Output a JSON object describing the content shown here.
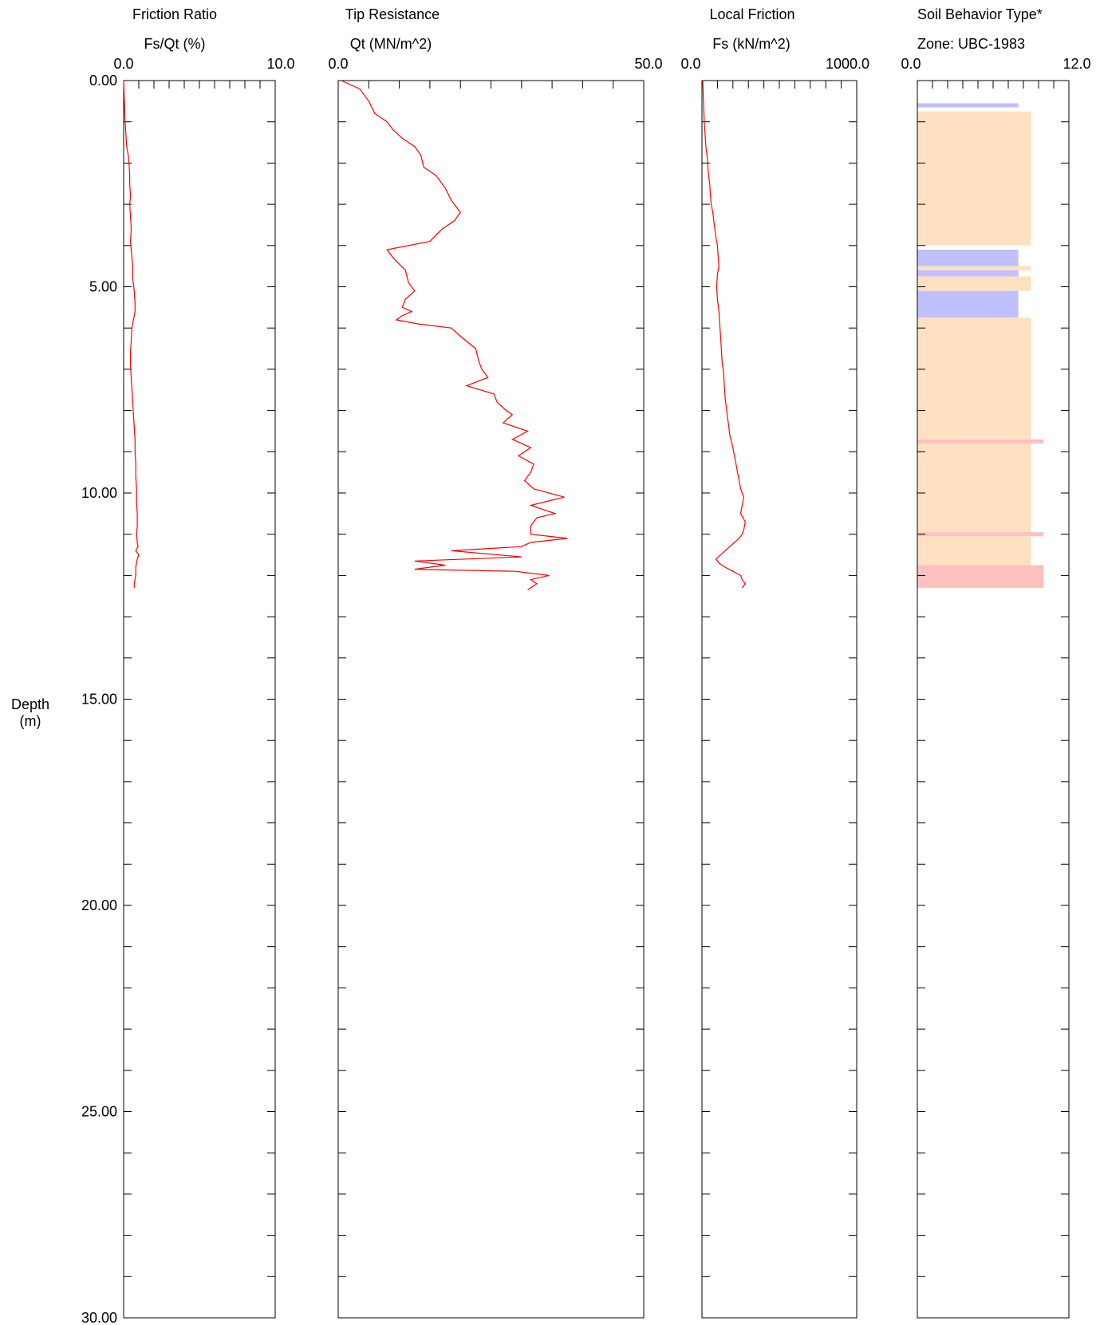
{
  "depth_axis": {
    "label_line1": "Depth",
    "label_line2": "(m)",
    "range": [
      0,
      30
    ],
    "major_ticks": [
      0,
      5,
      10,
      15,
      20,
      25,
      30
    ],
    "major_tick_labels": [
      "0.00",
      "5.00",
      "10.00",
      "15.00",
      "20.00",
      "25.00",
      "30.00"
    ],
    "minor_step": 1
  },
  "chart_data": [
    {
      "type": "line",
      "title": "Friction Ratio",
      "xlabel": "Fs/Qt (%)",
      "xlim": [
        0,
        10
      ],
      "x_tick_labels": [
        "0.0",
        "10.0"
      ],
      "ylabel": "Depth (m)",
      "series_color": "#ff0000",
      "x": [
        0.0,
        0.05,
        0.1,
        0.15,
        0.2,
        0.3,
        0.35,
        0.4,
        0.4,
        0.45,
        0.4,
        0.45,
        0.5,
        0.45,
        0.5,
        0.55,
        0.6,
        0.6,
        0.7,
        0.75,
        0.75,
        0.65,
        0.55,
        0.5,
        0.45,
        0.45,
        0.5,
        0.55,
        0.6,
        0.65,
        0.7,
        0.75,
        0.75,
        0.8,
        0.8,
        0.85,
        0.85,
        0.9,
        0.9,
        0.85,
        0.9,
        0.95,
        0.8,
        1.0,
        0.9,
        0.8,
        0.8,
        0.7,
        0.7
      ],
      "y": [
        0.0,
        0.5,
        1.0,
        1.3,
        1.6,
        1.8,
        2.0,
        2.3,
        2.5,
        2.8,
        3.0,
        3.3,
        3.6,
        3.9,
        4.1,
        4.3,
        4.5,
        4.8,
        5.1,
        5.4,
        5.6,
        5.8,
        6.0,
        6.3,
        6.6,
        6.9,
        7.2,
        7.5,
        7.8,
        8.1,
        8.4,
        8.7,
        9.0,
        9.3,
        9.6,
        9.9,
        10.2,
        10.5,
        10.8,
        11.0,
        11.2,
        11.3,
        11.4,
        11.5,
        11.6,
        11.8,
        12.0,
        12.2,
        12.3
      ]
    },
    {
      "type": "line",
      "title": "Tip Resistance",
      "xlabel": "Qt (MN/m^2)",
      "xlim": [
        0,
        50
      ],
      "x_tick_labels": [
        "0.0",
        "50.0"
      ],
      "ylabel": "Depth (m)",
      "series_color": "#ff0000",
      "x": [
        0.5,
        3.5,
        5.0,
        6.0,
        8.0,
        9.0,
        10.5,
        12.5,
        13.5,
        14.0,
        16.0,
        17.5,
        18.5,
        20.0,
        19.0,
        17.0,
        15.0,
        8.0,
        9.0,
        11.0,
        11.5,
        12.5,
        11.0,
        10.5,
        12.0,
        10.5,
        9.5,
        13.0,
        18.5,
        20.0,
        22.5,
        23.0,
        23.5,
        24.5,
        21.0,
        25.5,
        26.0,
        27.5,
        28.5,
        27.0,
        31.0,
        28.5,
        31.5,
        29.5,
        32.0,
        31.5,
        30.5,
        32.0,
        37.0,
        31.5,
        35.5,
        32.5,
        31.5,
        31.5,
        37.5,
        31.5,
        30.0,
        18.5,
        30.0,
        12.5,
        17.5,
        12.5,
        29.0,
        34.5,
        31.5,
        32.5,
        31.0
      ],
      "y": [
        0.0,
        0.2,
        0.5,
        0.8,
        1.0,
        1.2,
        1.4,
        1.6,
        1.8,
        2.1,
        2.3,
        2.6,
        2.9,
        3.2,
        3.4,
        3.6,
        3.9,
        4.1,
        4.3,
        4.6,
        4.9,
        5.1,
        5.3,
        5.5,
        5.6,
        5.7,
        5.8,
        5.9,
        6.0,
        6.2,
        6.5,
        6.8,
        7.0,
        7.2,
        7.4,
        7.6,
        7.8,
        8.0,
        8.1,
        8.3,
        8.5,
        8.7,
        8.9,
        9.1,
        9.3,
        9.5,
        9.7,
        9.9,
        10.1,
        10.3,
        10.5,
        10.6,
        10.8,
        11.0,
        11.1,
        11.2,
        11.3,
        11.4,
        11.55,
        11.65,
        11.75,
        11.85,
        11.9,
        12.0,
        12.1,
        12.2,
        12.35
      ]
    },
    {
      "type": "line",
      "title": "Local Friction",
      "xlabel": "Fs (kN/m^2)",
      "xlim": [
        0,
        1000
      ],
      "x_tick_labels": [
        "0.0",
        "1000.0"
      ],
      "ylabel": "Depth (m)",
      "series_color": "#ff0000",
      "x": [
        5,
        10,
        15,
        20,
        25,
        35,
        40,
        50,
        55,
        60,
        70,
        80,
        90,
        100,
        105,
        110,
        100,
        95,
        100,
        110,
        115,
        120,
        125,
        130,
        140,
        145,
        150,
        160,
        170,
        180,
        200,
        210,
        220,
        230,
        240,
        250,
        270,
        260,
        250,
        280,
        270,
        260,
        240,
        210,
        180,
        150,
        120,
        90,
        110,
        150,
        200,
        250,
        260,
        280,
        260
      ],
      "y": [
        0.0,
        0.5,
        1.0,
        1.3,
        1.6,
        1.9,
        2.2,
        2.5,
        2.8,
        3.0,
        3.2,
        3.5,
        3.8,
        4.0,
        4.3,
        4.5,
        4.7,
        5.0,
        5.3,
        5.6,
        5.9,
        6.2,
        6.5,
        6.8,
        7.1,
        7.4,
        7.7,
        8.0,
        8.3,
        8.6,
        8.9,
        9.1,
        9.3,
        9.5,
        9.7,
        9.9,
        10.1,
        10.3,
        10.5,
        10.7,
        10.9,
        11.0,
        11.1,
        11.2,
        11.3,
        11.4,
        11.5,
        11.6,
        11.7,
        11.8,
        11.9,
        12.0,
        12.1,
        12.2,
        12.3
      ]
    },
    {
      "type": "bar",
      "title": "Soil Behavior Type*",
      "xlabel": "Zone: UBC-1983",
      "xlim": [
        0,
        12
      ],
      "x_tick_labels": [
        "0.0",
        "12.0"
      ],
      "ylabel": "Depth (m)",
      "orientation": "horizontal",
      "zone_colors": {
        "4": "#c0c0ff",
        "8": "#ffe0c0",
        "10": "#ffc0c0"
      },
      "bands": [
        {
          "top": 0.55,
          "bottom": 0.65,
          "zone": 8.0,
          "color": "#c0c0ff"
        },
        {
          "top": 0.75,
          "bottom": 4.0,
          "zone": 9.0,
          "color": "#ffe0c0"
        },
        {
          "top": 4.1,
          "bottom": 4.5,
          "zone": 8.0,
          "color": "#c0c0ff"
        },
        {
          "top": 4.5,
          "bottom": 4.6,
          "zone": 9.0,
          "color": "#ffe0c0"
        },
        {
          "top": 4.6,
          "bottom": 4.75,
          "zone": 8.0,
          "color": "#c0c0ff"
        },
        {
          "top": 4.75,
          "bottom": 5.1,
          "zone": 9.0,
          "color": "#ffe0c0"
        },
        {
          "top": 5.1,
          "bottom": 5.75,
          "zone": 8.0,
          "color": "#c0c0ff"
        },
        {
          "top": 5.75,
          "bottom": 8.7,
          "zone": 9.0,
          "color": "#ffe0c0"
        },
        {
          "top": 8.7,
          "bottom": 8.8,
          "zone": 10.0,
          "color": "#ffc0c0"
        },
        {
          "top": 8.8,
          "bottom": 10.95,
          "zone": 9.0,
          "color": "#ffe0c0"
        },
        {
          "top": 10.95,
          "bottom": 11.05,
          "zone": 10.0,
          "color": "#ffc0c0"
        },
        {
          "top": 11.05,
          "bottom": 11.75,
          "zone": 9.0,
          "color": "#ffe0c0"
        },
        {
          "top": 11.75,
          "bottom": 12.3,
          "zone": 10.0,
          "color": "#ffc0c0"
        }
      ]
    }
  ]
}
